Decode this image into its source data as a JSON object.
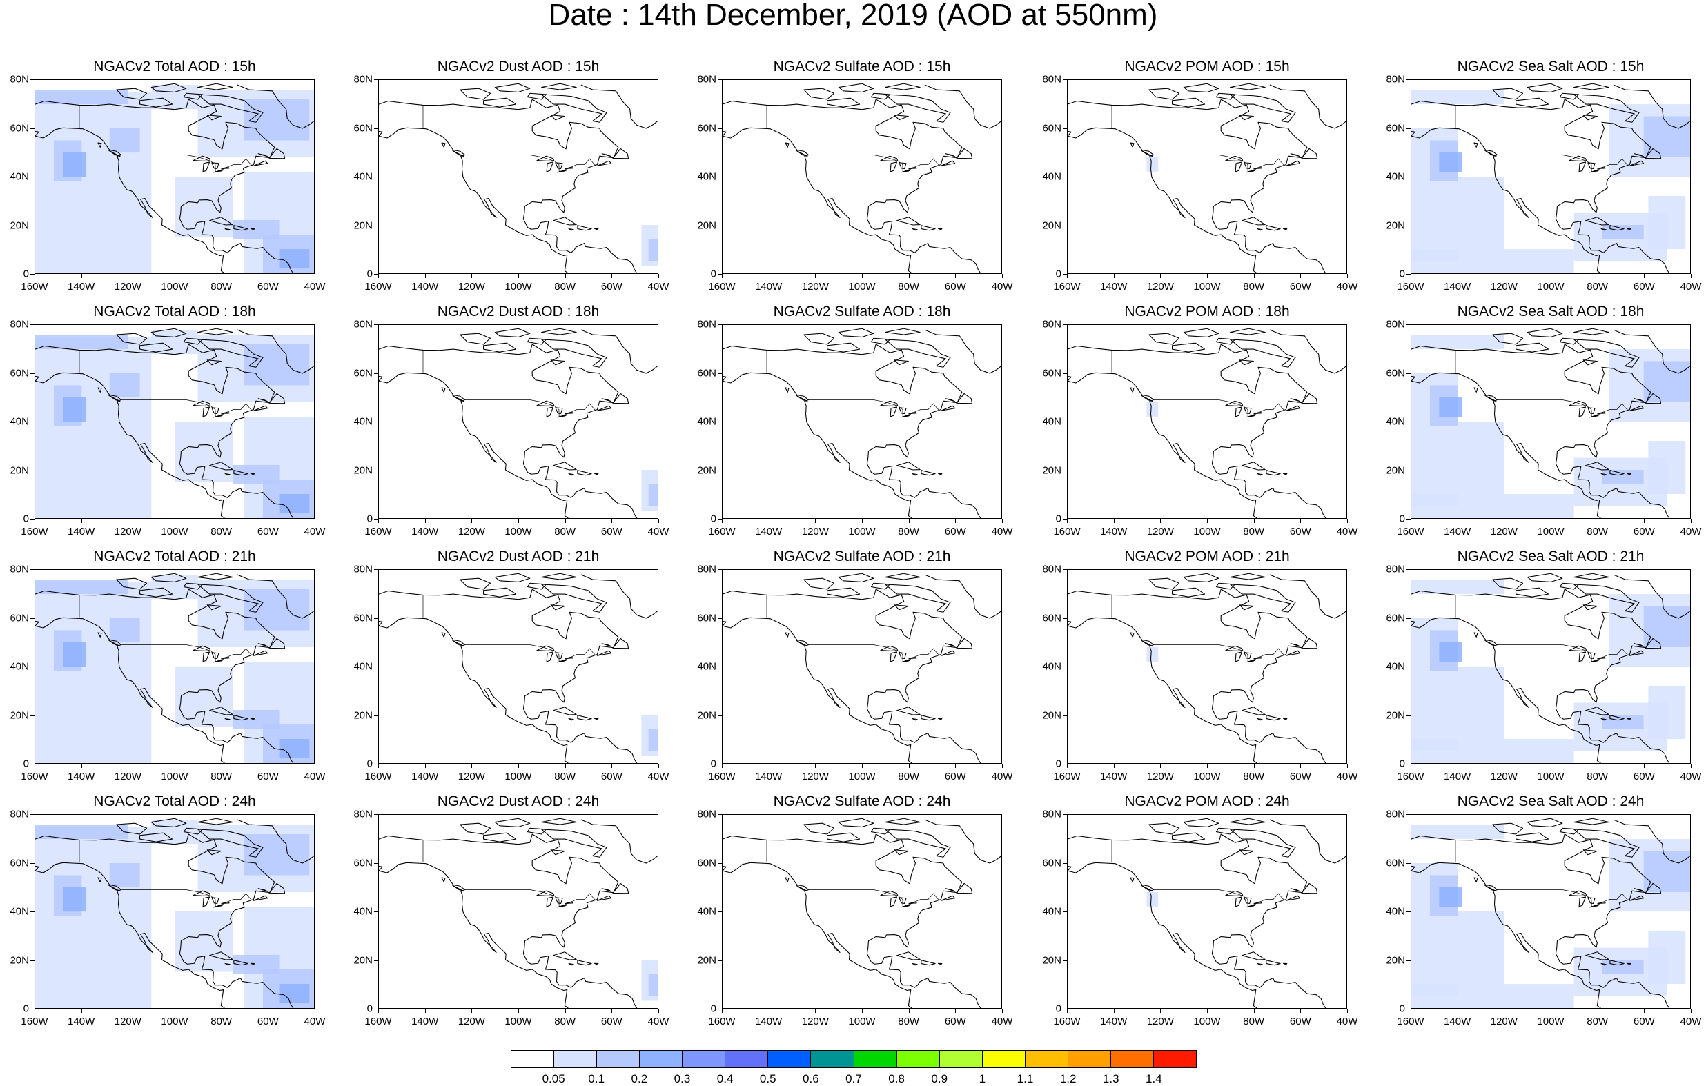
{
  "title": "Date : 14th December, 2019 (AOD at 550nm)",
  "panels": [
    {
      "title": "NGACv2 Total AOD : 15h",
      "species": "total"
    },
    {
      "title": "NGACv2 Dust AOD : 15h",
      "species": "dust"
    },
    {
      "title": "NGACv2 Sulfate AOD : 15h",
      "species": "sulfate"
    },
    {
      "title": "NGACv2 POM AOD : 15h",
      "species": "pom"
    },
    {
      "title": "NGACv2 Sea Salt AOD : 15h",
      "species": "seasalt"
    },
    {
      "title": "NGACv2 Total AOD : 18h",
      "species": "total"
    },
    {
      "title": "NGACv2 Dust AOD : 18h",
      "species": "dust"
    },
    {
      "title": "NGACv2 Sulfate AOD : 18h",
      "species": "sulfate"
    },
    {
      "title": "NGACv2 POM AOD : 18h",
      "species": "pom"
    },
    {
      "title": "NGACv2 Sea Salt AOD : 18h",
      "species": "seasalt"
    },
    {
      "title": "NGACv2 Total AOD : 21h",
      "species": "total"
    },
    {
      "title": "NGACv2 Dust AOD : 21h",
      "species": "dust"
    },
    {
      "title": "NGACv2 Sulfate AOD : 21h",
      "species": "sulfate"
    },
    {
      "title": "NGACv2 POM AOD : 21h",
      "species": "pom"
    },
    {
      "title": "NGACv2 Sea Salt AOD : 21h",
      "species": "seasalt"
    },
    {
      "title": "NGACv2 Total AOD : 24h",
      "species": "total"
    },
    {
      "title": "NGACv2 Dust AOD : 24h",
      "species": "dust"
    },
    {
      "title": "NGACv2 Sulfate AOD : 24h",
      "species": "sulfate"
    },
    {
      "title": "NGACv2 POM AOD : 24h",
      "species": "pom"
    },
    {
      "title": "NGACv2 Sea Salt  AOD : 24h",
      "species": "seasalt"
    }
  ],
  "axes": {
    "lat_labels": [
      "80N",
      "60N",
      "40N",
      "20N",
      "0"
    ],
    "lon_labels": [
      "160W",
      "140W",
      "120W",
      "100W",
      "80W",
      "60W",
      "40W"
    ]
  },
  "colorbar": {
    "labels": [
      "0.05",
      "0.1",
      "0.2",
      "0.3",
      "0.4",
      "0.5",
      "0.6",
      "0.7",
      "0.8",
      "0.9",
      "1",
      "1.1",
      "1.2",
      "1.3",
      "1.4"
    ],
    "colors": [
      "#ffffff",
      "#d6e2ff",
      "#b5c9ff",
      "#8eb2ff",
      "#7f96ff",
      "#6370f8",
      "#0060ff",
      "#009595",
      "#00d700",
      "#7cff00",
      "#b0ff30",
      "#f9ff00",
      "#ffbf00",
      "#ff9f00",
      "#ff6f00",
      "#ff1b00"
    ]
  }
}
